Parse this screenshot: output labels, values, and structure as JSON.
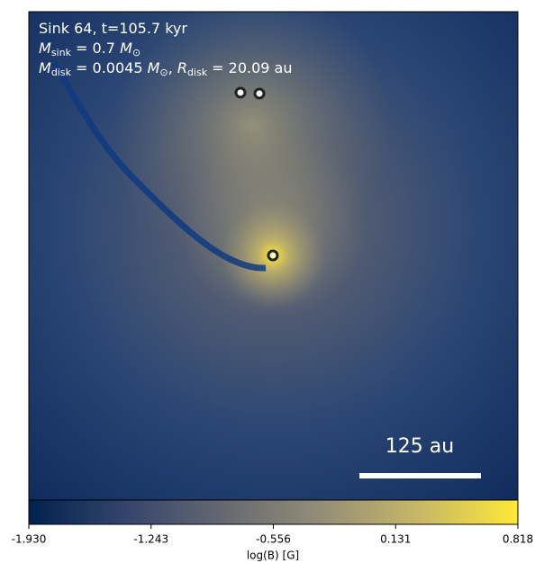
{
  "chart_data": {
    "type": "image",
    "annotation_lines": [
      [
        {
          "t": "Sink 64, t=105.7 kyr"
        }
      ],
      [
        {
          "t": "M",
          "italic": true
        },
        {
          "t": "sink",
          "sub": true
        },
        {
          "t": " = 0.7 "
        },
        {
          "t": "M",
          "italic": true
        },
        {
          "t": "⊙",
          "sub": true
        }
      ],
      [
        {
          "t": "M",
          "italic": true
        },
        {
          "t": "disk",
          "sub": true
        },
        {
          "t": " = 0.0045 "
        },
        {
          "t": "M",
          "italic": true
        },
        {
          "t": "⊙",
          "sub": true
        },
        {
          "t": ", "
        },
        {
          "t": "R",
          "italic": true
        },
        {
          "t": "disk",
          "sub": true
        },
        {
          "t": " = 20.09 au"
        }
      ]
    ],
    "scale_bar_label": "125 au",
    "colorbar": {
      "label": "log(B) [G]",
      "lim": [
        -1.93,
        0.818
      ],
      "ticks": [
        {
          "value": -1.93,
          "label": "-1.930"
        },
        {
          "value": -1.243,
          "label": "-1.243"
        },
        {
          "value": -0.556,
          "label": "-0.556"
        },
        {
          "value": 0.131,
          "label": "0.131"
        },
        {
          "value": 0.818,
          "label": "0.818"
        }
      ],
      "colors": [
        "#00224e",
        "#35456c",
        "#666970",
        "#948e77",
        "#c8b866",
        "#fee838"
      ]
    }
  }
}
